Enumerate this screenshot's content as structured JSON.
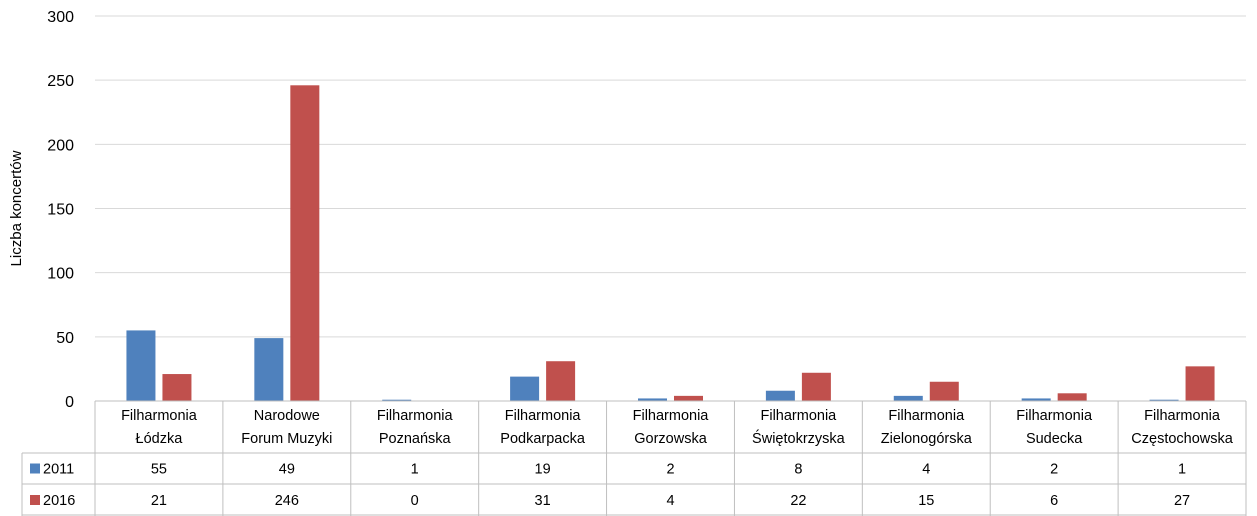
{
  "chart_data": {
    "type": "bar",
    "title": "",
    "xlabel": "",
    "ylabel": "Liczba koncertów",
    "ylim": [
      0,
      300
    ],
    "yticks": [
      0,
      50,
      100,
      150,
      200,
      250,
      300
    ],
    "grid": true,
    "legend": "data-table-left",
    "categories": [
      [
        "Filharmonia",
        "Łódzka"
      ],
      [
        "Narodowe",
        "Forum Muzyki"
      ],
      [
        "Filharmonia",
        "Poznańska"
      ],
      [
        "Filharmonia",
        "Podkarpacka"
      ],
      [
        "Filharmonia",
        "Gorzowska"
      ],
      [
        "Filharmonia",
        "Świętokrzyska"
      ],
      [
        "Filharmonia",
        "Zielonogórska"
      ],
      [
        "Filharmonia",
        "Sudecka"
      ],
      [
        "Filharmonia",
        "Częstochowska"
      ]
    ],
    "series": [
      {
        "name": "2011",
        "color": "#4f81bd",
        "values": [
          55,
          49,
          1,
          19,
          2,
          8,
          4,
          2,
          1
        ]
      },
      {
        "name": "2016",
        "color": "#c0504d",
        "values": [
          21,
          246,
          0,
          31,
          4,
          22,
          15,
          6,
          27
        ]
      }
    ]
  }
}
